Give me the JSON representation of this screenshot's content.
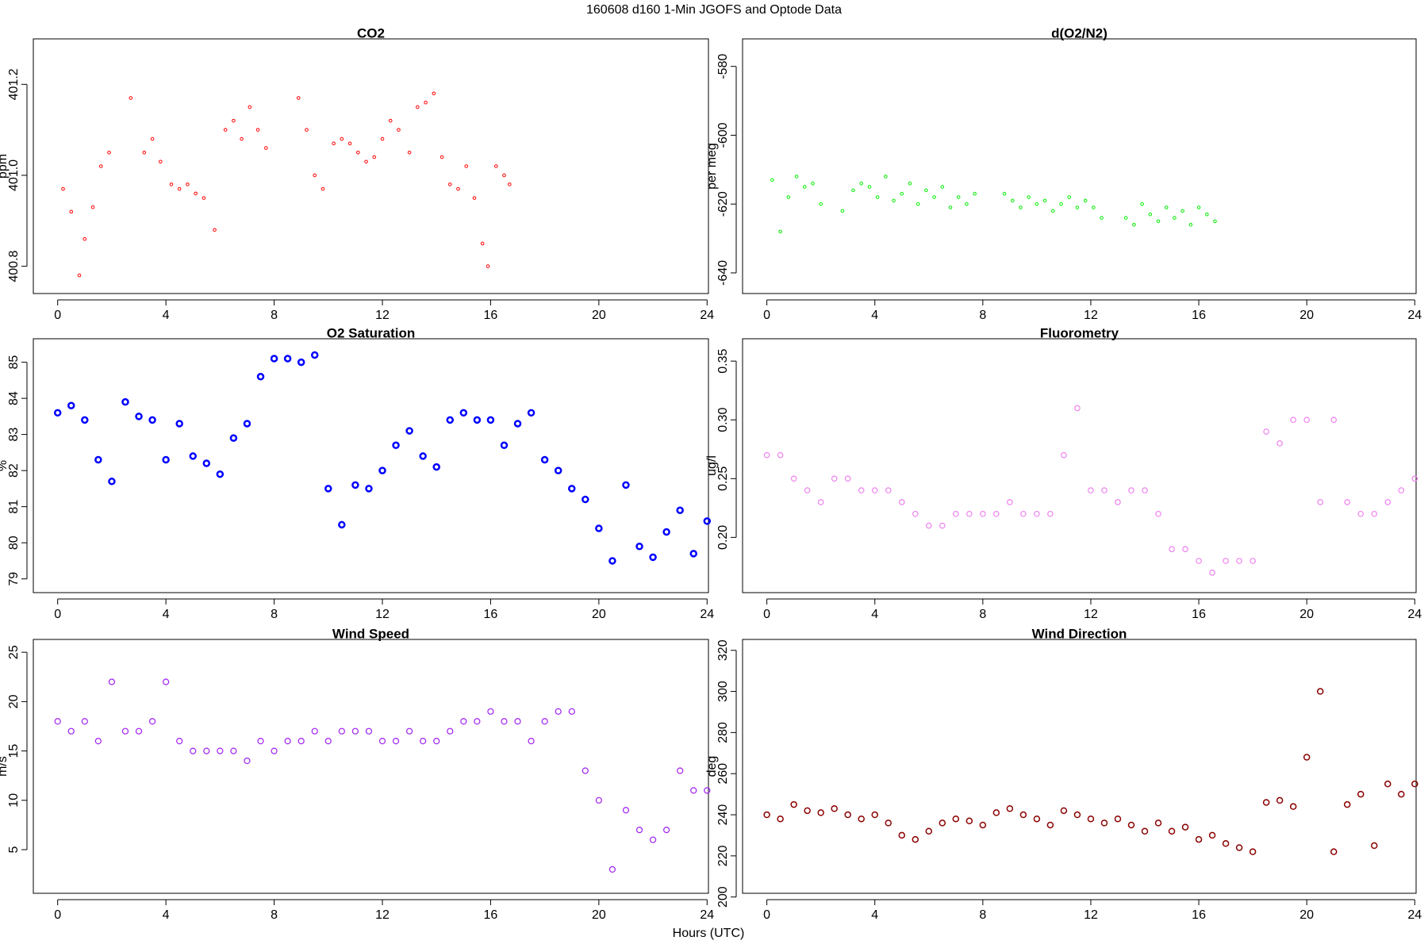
{
  "title": "160608   d160   1-Min  JGOFS and Optode Data",
  "xlabel": "Hours (UTC)",
  "chart_data": [
    {
      "type": "scatter",
      "title": "CO2",
      "ylabel": "ppm",
      "color": "#ff0000",
      "x": [
        0.2,
        0.5,
        0.8,
        1.0,
        1.3,
        1.6,
        1.9,
        2.7,
        3.2,
        3.5,
        3.8,
        4.2,
        4.5,
        4.8,
        5.1,
        5.4,
        5.8,
        6.2,
        6.5,
        6.8,
        7.1,
        7.4,
        7.7,
        8.9,
        9.2,
        9.5,
        9.8,
        10.2,
        10.5,
        10.8,
        11.1,
        11.4,
        11.7,
        12.0,
        12.3,
        12.6,
        13.0,
        13.3,
        13.6,
        13.9,
        14.2,
        14.5,
        14.8,
        15.1,
        15.4,
        15.7,
        15.9,
        16.2,
        16.5,
        16.7
      ],
      "y": [
        400.97,
        400.92,
        400.78,
        400.86,
        400.93,
        401.02,
        401.05,
        401.17,
        401.05,
        401.08,
        401.03,
        400.98,
        400.97,
        400.98,
        400.96,
        400.95,
        400.88,
        401.1,
        401.12,
        401.08,
        401.15,
        401.1,
        401.06,
        401.17,
        401.1,
        401.0,
        400.97,
        401.07,
        401.08,
        401.07,
        401.05,
        401.03,
        401.04,
        401.08,
        401.12,
        401.1,
        401.05,
        401.15,
        401.16,
        401.18,
        401.04,
        400.98,
        400.97,
        401.02,
        400.95,
        400.85,
        400.8,
        401.02,
        401.0,
        400.98
      ],
      "xlim": [
        -0.9,
        24.05
      ],
      "xticks": [
        0,
        4,
        8,
        12,
        16,
        20,
        24
      ],
      "ylim": [
        400.74,
        401.3
      ],
      "yticks": [
        400.8,
        {
          "value": 401,
          "label": "401.0"
        },
        401.2
      ]
    },
    {
      "type": "scatter",
      "title": "d(O2/N2)",
      "ylabel": "per meg",
      "color": "#00ee00",
      "x": [
        0.2,
        0.5,
        0.8,
        1.1,
        1.4,
        1.7,
        2.0,
        2.8,
        3.2,
        3.5,
        3.8,
        4.1,
        4.4,
        4.7,
        5.0,
        5.3,
        5.6,
        5.9,
        6.2,
        6.5,
        6.8,
        7.1,
        7.4,
        7.7,
        8.8,
        9.1,
        9.4,
        9.7,
        10.0,
        10.3,
        10.6,
        10.9,
        11.2,
        11.5,
        11.8,
        12.1,
        12.4,
        13.3,
        13.6,
        13.9,
        14.2,
        14.5,
        14.8,
        15.1,
        15.4,
        15.7,
        16.0,
        16.3,
        16.6
      ],
      "y": [
        -613,
        -628,
        -618,
        -612,
        -615,
        -614,
        -620,
        -622,
        -616,
        -614,
        -615,
        -618,
        -612,
        -619,
        -617,
        -614,
        -620,
        -616,
        -618,
        -615,
        -621,
        -618,
        -620,
        -617,
        -617,
        -619,
        -621,
        -618,
        -620,
        -619,
        -622,
        -620,
        -618,
        -621,
        -619,
        -621,
        -624,
        -624,
        -626,
        -620,
        -623,
        -625,
        -621,
        -624,
        -622,
        -626,
        -621,
        -623,
        -625
      ],
      "xlim": [
        -0.9,
        24.05
      ],
      "xticks": [
        0,
        4,
        8,
        12,
        16,
        20,
        24
      ],
      "ylim": [
        -646,
        -572
      ],
      "yticks": [
        -640,
        -620,
        -600,
        -580
      ]
    },
    {
      "type": "scatter",
      "title": "O2 Saturation",
      "ylabel": "%",
      "color": "#0000ff",
      "x": [
        0,
        0.5,
        1,
        1.5,
        2,
        2.5,
        3,
        3.5,
        4,
        4.5,
        5,
        5.5,
        6,
        6.5,
        7,
        7.5,
        8,
        8.5,
        9,
        9.5,
        10,
        10.5,
        11,
        11.5,
        12,
        12.5,
        13,
        13.5,
        14,
        14.5,
        15,
        15.5,
        16,
        16.5,
        17,
        17.5,
        18,
        18.5,
        19,
        19.5,
        20,
        20.5,
        21,
        21.5,
        22,
        22.5,
        23,
        23.5,
        24
      ],
      "y": [
        83.6,
        83.8,
        83.4,
        82.3,
        81.7,
        83.9,
        83.5,
        83.4,
        82.3,
        83.3,
        82.4,
        82.2,
        81.9,
        82.9,
        83.3,
        84.6,
        85.1,
        85.1,
        85.0,
        85.2,
        81.5,
        80.5,
        81.6,
        81.5,
        82.0,
        82.7,
        83.1,
        82.4,
        82.1,
        83.4,
        83.6,
        83.4,
        83.4,
        82.7,
        83.3,
        83.6,
        82.3,
        82.0,
        81.5,
        81.2,
        80.4,
        79.5,
        81.6,
        79.9,
        79.6,
        80.3,
        80.9,
        79.7,
        80.6
      ],
      "xlim": [
        -0.9,
        24.05
      ],
      "xticks": [
        0,
        4,
        8,
        12,
        16,
        20,
        24
      ],
      "ylim": [
        78.62,
        85.65
      ],
      "yticks": [
        79,
        80,
        81,
        82,
        83,
        84,
        85
      ]
    },
    {
      "type": "scatter",
      "title": "Fluorometry",
      "ylabel": "ug/l",
      "color": "#ee82ee",
      "x": [
        0,
        0.5,
        1,
        1.5,
        2,
        2.5,
        3,
        3.5,
        4,
        4.5,
        5,
        5.5,
        6,
        6.5,
        7,
        7.5,
        8,
        8.5,
        9,
        9.5,
        10,
        10.5,
        11,
        11.5,
        12,
        12.5,
        13,
        13.5,
        14,
        14.5,
        15,
        15.5,
        16,
        16.5,
        17,
        17.5,
        18,
        18.5,
        19,
        19.5,
        20,
        20.5,
        21,
        21.5,
        22,
        22.5,
        23,
        23.5,
        24
      ],
      "y": [
        0.27,
        0.27,
        0.25,
        0.24,
        0.23,
        0.25,
        0.25,
        0.24,
        0.24,
        0.24,
        0.23,
        0.22,
        0.21,
        0.21,
        0.22,
        0.22,
        0.22,
        0.22,
        0.23,
        0.22,
        0.22,
        0.22,
        0.27,
        0.31,
        0.24,
        0.24,
        0.23,
        0.24,
        0.24,
        0.22,
        0.19,
        0.19,
        0.18,
        0.17,
        0.18,
        0.18,
        0.18,
        0.29,
        0.28,
        0.3,
        0.3,
        0.23,
        0.3,
        0.23,
        0.22,
        0.22,
        0.23,
        0.24,
        0.25
      ],
      "xlim": [
        -0.9,
        24.05
      ],
      "xticks": [
        0,
        4,
        8,
        12,
        16,
        20,
        24
      ],
      "ylim": [
        0.153,
        0.369
      ],
      "yticks": [
        {
          "value": 0.2,
          "label": "0.20"
        },
        0.25,
        {
          "value": 0.3,
          "label": "0.30"
        },
        0.35
      ]
    },
    {
      "type": "scatter",
      "title": "Wind Speed",
      "ylabel": "m/s",
      "color": "#a020f0",
      "x": [
        0,
        0.5,
        1,
        1.5,
        2,
        2.5,
        3,
        3.5,
        4,
        4.5,
        5,
        5.5,
        6,
        6.5,
        7,
        7.5,
        8,
        8.5,
        9,
        9.5,
        10,
        10.5,
        11,
        11.5,
        12,
        12.5,
        13,
        13.5,
        14,
        14.5,
        15,
        15.5,
        16,
        16.5,
        17,
        17.5,
        18,
        18.5,
        19,
        19.5,
        20,
        20.5,
        21,
        21.5,
        22,
        22.5,
        23,
        23.5,
        24
      ],
      "y": [
        18,
        17,
        18,
        16,
        22,
        17,
        17,
        18,
        22,
        16,
        15,
        15,
        15,
        15,
        14,
        16,
        15,
        16,
        16,
        17,
        16,
        17,
        17,
        17,
        16,
        16,
        17,
        16,
        16,
        17,
        18,
        18,
        19,
        18,
        18,
        16,
        18,
        19,
        19,
        13,
        10,
        3,
        9,
        7,
        6,
        7,
        13,
        11,
        11
      ],
      "xlim": [
        -0.9,
        24.05
      ],
      "xticks": [
        0,
        4,
        8,
        12,
        16,
        20,
        24
      ],
      "ylim": [
        0.58,
        26.3
      ],
      "yticks": [
        5,
        10,
        15,
        20,
        25
      ]
    },
    {
      "type": "scatter",
      "title": "Wind Direction",
      "ylabel": "deg",
      "color": "#8b0000",
      "x": [
        0,
        0.5,
        1,
        1.5,
        2,
        2.5,
        3,
        3.5,
        4,
        4.5,
        5,
        5.5,
        6,
        6.5,
        7,
        7.5,
        8,
        8.5,
        9,
        9.5,
        10,
        10.5,
        11,
        11.5,
        12,
        12.5,
        13,
        13.5,
        14,
        14.5,
        15,
        15.5,
        16,
        16.5,
        17,
        17.5,
        18,
        18.5,
        19,
        19.5,
        20,
        20.5,
        21,
        21.5,
        22,
        22.5,
        23,
        23.5,
        24
      ],
      "y": [
        240,
        238,
        245,
        242,
        241,
        243,
        240,
        238,
        240,
        236,
        230,
        228,
        232,
        236,
        238,
        237,
        235,
        241,
        243,
        240,
        238,
        235,
        242,
        240,
        238,
        236,
        238,
        235,
        232,
        236,
        232,
        234,
        228,
        230,
        226,
        224,
        222,
        246,
        247,
        244,
        268,
        300,
        222,
        245,
        250,
        225,
        255,
        250,
        255
      ],
      "xlim": [
        -0.9,
        24.05
      ],
      "xticks": [
        0,
        4,
        8,
        12,
        16,
        20,
        24
      ],
      "ylim": [
        201.8,
        325.3
      ],
      "yticks": [
        200,
        220,
        240,
        260,
        280,
        300,
        320
      ]
    }
  ]
}
